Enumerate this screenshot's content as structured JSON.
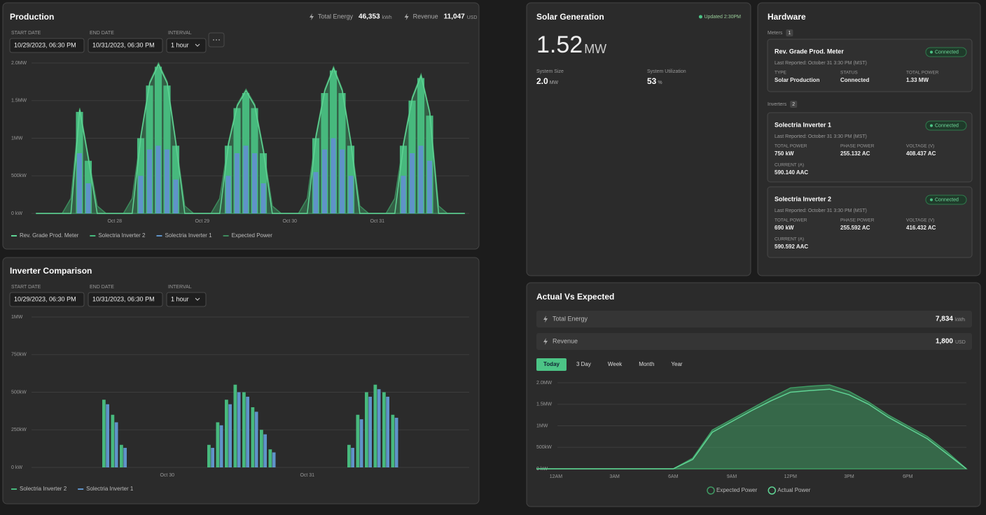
{
  "chart_data": [
    {
      "type": "bar",
      "title": "Production",
      "barmode": "overlay",
      "grid": true,
      "ylim": [
        0,
        2
      ],
      "yticks": [
        {
          "value": 0,
          "label": "0 kW"
        },
        {
          "value": 0.5,
          "label": "500kW"
        },
        {
          "value": 1,
          "label": "1MW"
        },
        {
          "value": 1.5,
          "label": "1.5MW"
        },
        {
          "value": 2,
          "label": "2.0MW"
        }
      ],
      "categories": [
        null,
        null,
        null,
        null,
        null,
        null,
        null,
        null,
        null,
        "Oct 28",
        null,
        null,
        null,
        null,
        null,
        null,
        null,
        null,
        null,
        "Oct 29",
        null,
        null,
        null,
        null,
        null,
        null,
        null,
        null,
        null,
        "Oct 30",
        null,
        null,
        null,
        null,
        null,
        null,
        null,
        null,
        null,
        "Oct 31",
        null,
        null,
        null,
        null,
        null,
        null,
        null,
        null,
        null,
        null
      ],
      "series": [
        {
          "name": "Rev. Grade Prod. Meter",
          "style": "line",
          "color": "#5fd394",
          "values": [
            0,
            0,
            0,
            0,
            0,
            1.38,
            0.72,
            0,
            0,
            0,
            0,
            0,
            1.03,
            1.73,
            1.98,
            1.73,
            0.92,
            0,
            0,
            0,
            0,
            0,
            0.92,
            1.43,
            1.63,
            1.43,
            0.82,
            0,
            0,
            0,
            0,
            0,
            1.02,
            1.63,
            1.93,
            1.63,
            0.92,
            0,
            0,
            0,
            0,
            0,
            0.92,
            1.53,
            1.83,
            1.33,
            0,
            0,
            0,
            0
          ]
        },
        {
          "name": "Solectria Inverter 2",
          "style": "bar",
          "color": "#47b97d",
          "values": [
            0,
            0,
            0,
            0,
            0,
            1.35,
            0.7,
            0,
            0,
            0,
            0,
            0,
            1.0,
            1.7,
            1.95,
            1.7,
            0.9,
            0,
            0,
            0,
            0,
            0,
            0.9,
            1.4,
            1.6,
            1.4,
            0.8,
            0,
            0,
            0,
            0,
            0,
            1.0,
            1.6,
            1.9,
            1.6,
            0.9,
            0,
            0,
            0,
            0,
            0,
            0.9,
            1.5,
            1.8,
            1.3,
            0,
            0,
            0,
            0
          ]
        },
        {
          "name": "Solectria Inverter 1",
          "style": "bar",
          "color": "#5f93c9",
          "values": [
            0,
            0,
            0,
            0,
            0,
            0.8,
            0.4,
            0,
            0,
            0,
            0,
            0,
            0.5,
            0.85,
            0.9,
            0.85,
            0.45,
            0,
            0,
            0,
            0,
            0,
            0.5,
            0.8,
            0.9,
            0.8,
            0.4,
            0,
            0,
            0,
            0,
            0,
            0.55,
            0.85,
            1.0,
            0.85,
            0.5,
            0,
            0,
            0,
            0,
            0,
            0.5,
            0.8,
            0.9,
            0.7,
            0,
            0,
            0,
            0
          ]
        },
        {
          "name": "Expected Power",
          "style": "area",
          "color": "#3d8a5c",
          "values": [
            0,
            0,
            0,
            0,
            0.2,
            1.4,
            0.75,
            0.1,
            0,
            0,
            0,
            0.2,
            1.05,
            1.75,
            2.0,
            1.75,
            0.95,
            0.1,
            0,
            0,
            0,
            0.2,
            0.95,
            1.45,
            1.65,
            1.45,
            0.85,
            0.1,
            0,
            0,
            0,
            0.2,
            1.05,
            1.65,
            1.95,
            1.65,
            0.95,
            0.1,
            0,
            0,
            0,
            0.2,
            0.95,
            1.55,
            1.85,
            1.35,
            0.1,
            0,
            0,
            0
          ]
        }
      ]
    },
    {
      "type": "bar",
      "title": "Inverter Comparison",
      "barmode": "group",
      "grid": true,
      "ylim": [
        0,
        1
      ],
      "yticks": [
        {
          "value": 0,
          "label": "0 kW"
        },
        {
          "value": 0.25,
          "label": "250kW"
        },
        {
          "value": 0.5,
          "label": "500kW"
        },
        {
          "value": 0.75,
          "label": "750kW"
        },
        {
          "value": 1,
          "label": "1MW"
        }
      ],
      "categories": [
        null,
        null,
        null,
        null,
        null,
        null,
        null,
        null,
        null,
        null,
        null,
        null,
        null,
        null,
        null,
        "Oct 30",
        null,
        null,
        null,
        null,
        null,
        null,
        null,
        null,
        null,
        null,
        null,
        null,
        null,
        null,
        null,
        "Oct 31",
        null,
        null,
        null,
        null,
        null,
        null,
        null,
        null,
        null,
        null,
        null,
        null,
        null,
        null,
        null,
        null,
        null,
        null
      ],
      "series": [
        {
          "name": "Solectria Inverter 2",
          "style": "bar",
          "color": "#47b97d",
          "values": [
            0,
            0,
            0,
            0,
            0,
            0,
            0,
            0,
            0.45,
            0.35,
            0.15,
            0,
            0,
            0,
            0,
            0,
            0,
            0,
            0,
            0,
            0.15,
            0.3,
            0.45,
            0.55,
            0.5,
            0.4,
            0.25,
            0.12,
            0,
            0,
            0,
            0,
            0,
            0,
            0,
            0,
            0.15,
            0.35,
            0.5,
            0.55,
            0.5,
            0.35,
            0,
            0,
            0,
            0,
            0,
            0,
            0,
            0
          ]
        },
        {
          "name": "Solectria Inverter 1",
          "style": "bar",
          "color": "#5f93c9",
          "values": [
            0,
            0,
            0,
            0,
            0,
            0,
            0,
            0,
            0.42,
            0.3,
            0.13,
            0,
            0,
            0,
            0,
            0,
            0,
            0,
            0,
            0,
            0.13,
            0.28,
            0.42,
            0.5,
            0.47,
            0.37,
            0.22,
            0.1,
            0,
            0,
            0,
            0,
            0,
            0,
            0,
            0,
            0.13,
            0.32,
            0.47,
            0.52,
            0.47,
            0.33,
            0,
            0,
            0,
            0,
            0,
            0,
            0,
            0
          ]
        }
      ]
    },
    {
      "type": "area",
      "title": "Actual Vs Expected",
      "grid": true,
      "ylim": [
        0,
        2
      ],
      "yticks": [
        {
          "value": 0,
          "label": "0 kW"
        },
        {
          "value": 0.5,
          "label": "500kW"
        },
        {
          "value": 1,
          "label": "1MW"
        },
        {
          "value": 1.5,
          "label": "1.5MW"
        },
        {
          "value": 2,
          "label": "2.0MW"
        }
      ],
      "categories": [
        null,
        "12AM",
        null,
        null,
        "3AM",
        null,
        null,
        "6AM",
        null,
        null,
        "9AM",
        null,
        null,
        "12PM",
        null,
        null,
        "3PM",
        null,
        null,
        "6PM",
        null,
        null,
        null
      ],
      "series": [
        {
          "name": "Expected Power",
          "style": "area",
          "color": "#3f9a63",
          "values": [
            0,
            0,
            0,
            0,
            0,
            0,
            0,
            0,
            0.25,
            0.9,
            1.15,
            1.4,
            1.65,
            1.88,
            1.92,
            1.95,
            1.8,
            1.55,
            1.25,
            1.0,
            0.75,
            0.4,
            0
          ]
        },
        {
          "name": "Actual Power",
          "style": "line",
          "color": "#5fd394",
          "values": [
            0,
            0,
            0,
            0,
            0,
            0,
            0,
            0,
            0.22,
            0.85,
            1.1,
            1.35,
            1.58,
            1.78,
            1.82,
            1.85,
            1.72,
            1.5,
            1.2,
            0.95,
            0.7,
            0.35,
            0
          ]
        }
      ]
    }
  ],
  "panels": {
    "production": {
      "stats": [
        {
          "label": "Total Energy",
          "value": "46,353",
          "unit": "kWh"
        },
        {
          "label": "Revenue",
          "value": "11,047",
          "unit": "USD"
        }
      ],
      "fields": [
        {
          "label": "START DATE",
          "value": "10/29/2023, 06:30 PM"
        },
        {
          "label": "END DATE",
          "value": "10/31/2023, 06:30 PM"
        },
        {
          "label": "INTERVAL",
          "value": "1 hour"
        }
      ]
    },
    "inverter_comparison": {
      "fields": [
        {
          "label": "START DATE",
          "value": "10/29/2023, 06:30 PM"
        },
        {
          "label": "END DATE",
          "value": "10/31/2023, 06:30 PM"
        },
        {
          "label": "INTERVAL",
          "value": "1 hour"
        }
      ]
    },
    "solar_generation": {
      "title": "Solar Generation",
      "status": "Updated 2:30PM",
      "value": "1.52",
      "unit": "MW",
      "stats": [
        {
          "label": "System Size",
          "value": "2.0",
          "unit": "MW"
        },
        {
          "label": "System Utilization",
          "value": "53",
          "unit": "%"
        }
      ]
    },
    "hardware": {
      "title": "Hardware",
      "groups": [
        {
          "label": "Meters",
          "count": "1",
          "devices": [
            {
              "name": "Rev. Grade Prod. Meter",
              "status": "Connected",
              "reported": "Last Reported: October 31 3:30 PM (MST)",
              "fields": [
                {
                  "label": "TYPE",
                  "value": "Solar Production"
                },
                {
                  "label": "STATUS",
                  "value": "Connected"
                },
                {
                  "label": "TOTAL POWER",
                  "value": "1.33 MW"
                }
              ]
            }
          ]
        },
        {
          "label": "Inverters",
          "count": "2",
          "devices": [
            {
              "name": "Solectria Inverter 1",
              "status": "Connected",
              "reported": "Last Reported: October 31 3:30 PM (MST)",
              "fields": [
                {
                  "label": "TOTAL POWER",
                  "value": "750 kW"
                },
                {
                  "label": "PHASE POWER",
                  "value": "255.132 AC"
                },
                {
                  "label": "VOLTAGE (V)",
                  "value": "408.437 AC"
                },
                {
                  "label": "CURRENT (A)",
                  "value": "590.140 AAC"
                }
              ]
            },
            {
              "name": "Solectria Inverter 2",
              "status": "Connected",
              "reported": "Last Reported: October 31 3:30 PM (MST)",
              "fields": [
                {
                  "label": "TOTAL POWER",
                  "value": "690 kW"
                },
                {
                  "label": "PHASE POWER",
                  "value": "255.592 AC"
                },
                {
                  "label": "VOLTAGE (V)",
                  "value": "416.432 AC"
                },
                {
                  "label": "CURRENT (A)",
                  "value": "590.592 AAC"
                }
              ]
            }
          ]
        }
      ]
    },
    "actual_vs_expected": {
      "stats": [
        {
          "label": "Total Energy",
          "value": "7,834",
          "unit": "kWh"
        },
        {
          "label": "Revenue",
          "value": "1,800",
          "unit": "USD"
        }
      ],
      "tabs": [
        "Today",
        "3 Day",
        "Week",
        "Month",
        "Year"
      ],
      "active_tab": 0
    }
  }
}
